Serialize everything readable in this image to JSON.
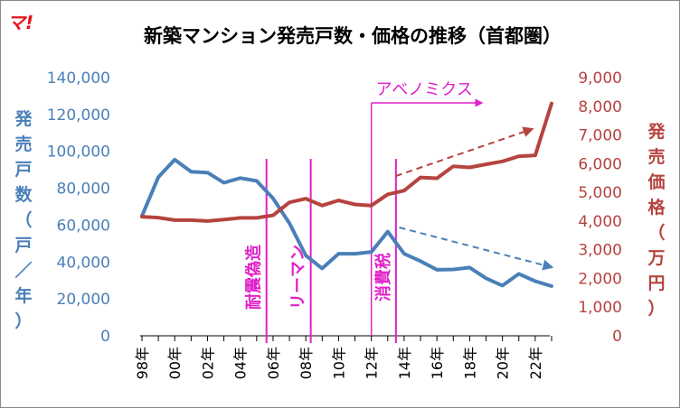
{
  "logo_text": "マ!",
  "colors": {
    "units": "#4a7fb8",
    "price": "#b5433f",
    "events": "#e020c8"
  },
  "chart_data": {
    "type": "line",
    "title": "新築マンション発売戸数・価格の推移（首都圏）",
    "ylabel_left": [
      "発",
      "売",
      "戸",
      "数",
      "（",
      "戸",
      "／",
      "年",
      "）"
    ],
    "ylabel_right": [
      "発",
      "売",
      "価",
      "格",
      "（",
      "万",
      "円",
      "）"
    ],
    "left_axis": {
      "min": 0,
      "max": 140000,
      "ticks": [
        "0",
        "20,000",
        "40,000",
        "60,000",
        "80,000",
        "100,000",
        "120,000",
        "140,000"
      ]
    },
    "right_axis": {
      "min": 0,
      "max": 9000,
      "ticks": [
        "0",
        "1,000",
        "2,000",
        "3,000",
        "4,000",
        "5,000",
        "6,000",
        "7,000",
        "8,000",
        "9,000"
      ]
    },
    "x": [
      "98年",
      "99年",
      "00年",
      "01年",
      "02年",
      "03年",
      "04年",
      "05年",
      "06年",
      "07年",
      "08年",
      "09年",
      "10年",
      "11年",
      "12年",
      "13年",
      "14年",
      "15年",
      "16年",
      "17年",
      "18年",
      "19年",
      "20年",
      "21年",
      "22年",
      "23年"
    ],
    "x_tick_labels": [
      "98年",
      "00年",
      "02年",
      "04年",
      "06年",
      "08年",
      "10年",
      "12年",
      "14年",
      "16年",
      "18年",
      "20年",
      "22年"
    ],
    "series": [
      {
        "axis": "left",
        "values": [
          65000,
          86000,
          95500,
          89000,
          88500,
          83000,
          85500,
          84000,
          74500,
          61000,
          43500,
          36500,
          44500,
          44500,
          45500,
          56500,
          44500,
          40500,
          35800,
          36000,
          37000,
          31200,
          27200,
          33600,
          29600,
          26900
        ]
      },
      {
        "axis": "right",
        "values": [
          4150,
          4120,
          4030,
          4030,
          4000,
          4050,
          4110,
          4110,
          4200,
          4650,
          4780,
          4540,
          4720,
          4580,
          4540,
          4930,
          5060,
          5520,
          5490,
          5910,
          5870,
          5980,
          6080,
          6260,
          6290,
          8100
        ]
      }
    ],
    "events": [
      {
        "label": "耐震偽造",
        "x_index": 7.6
      },
      {
        "label": "リーマン",
        "x_index": 10.3
      },
      {
        "label": "消費税",
        "x_index": 15.5
      }
    ],
    "abenomics": {
      "label": "アベノミクス",
      "start_index": 14.0
    }
  }
}
